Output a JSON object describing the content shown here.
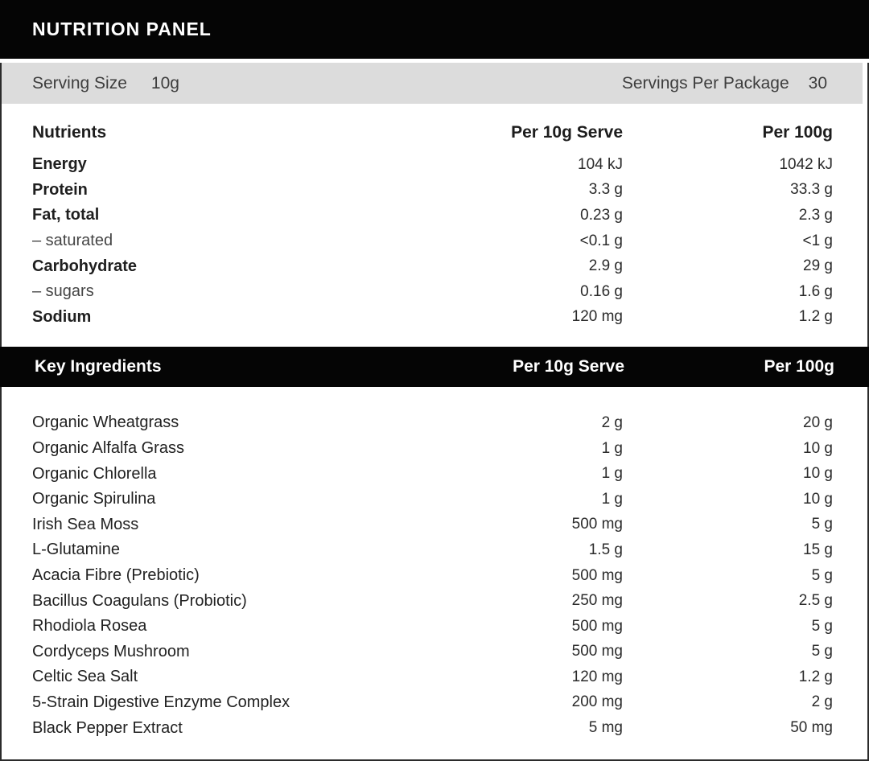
{
  "title": "NUTRITION PANEL",
  "serving": {
    "size_label": "Serving Size",
    "size_value": "10g",
    "per_package_label": "Servings Per Package",
    "per_package_value": "30"
  },
  "nutrients": {
    "header": {
      "col1": "Nutrients",
      "col2": "Per 10g Serve",
      "col3": "Per 100g"
    },
    "rows": [
      {
        "label": "Energy",
        "per_serve": "104 kJ",
        "per_100g": "1042 kJ",
        "style": "bold"
      },
      {
        "label": "Protein",
        "per_serve": "3.3 g",
        "per_100g": "33.3 g",
        "style": "bold"
      },
      {
        "label": "Fat, total",
        "per_serve": "0.23 g",
        "per_100g": "2.3 g",
        "style": "bold"
      },
      {
        "label": "– saturated",
        "per_serve": "<0.1 g",
        "per_100g": "<1 g",
        "style": "sub"
      },
      {
        "label": "Carbohydrate",
        "per_serve": "2.9 g",
        "per_100g": "29 g",
        "style": "bold"
      },
      {
        "label": "– sugars",
        "per_serve": "0.16 g",
        "per_100g": "1.6 g",
        "style": "sub"
      },
      {
        "label": "Sodium",
        "per_serve": "120 mg",
        "per_100g": "1.2 g",
        "style": "bold"
      }
    ]
  },
  "ingredients": {
    "header": {
      "col1": "Key Ingredients",
      "col2": "Per 10g Serve",
      "col3": "Per 100g"
    },
    "rows": [
      {
        "label": "Organic Wheatgrass",
        "per_serve": "2 g",
        "per_100g": "20 g"
      },
      {
        "label": "Organic Alfalfa Grass",
        "per_serve": "1 g",
        "per_100g": "10 g"
      },
      {
        "label": "Organic Chlorella",
        "per_serve": "1 g",
        "per_100g": "10 g"
      },
      {
        "label": "Organic Spirulina",
        "per_serve": "1 g",
        "per_100g": "10 g"
      },
      {
        "label": "Irish Sea Moss",
        "per_serve": "500 mg",
        "per_100g": "5 g"
      },
      {
        "label": "L-Glutamine",
        "per_serve": "1.5 g",
        "per_100g": "15 g"
      },
      {
        "label": "Acacia Fibre (Prebiotic)",
        "per_serve": "500 mg",
        "per_100g": "5 g"
      },
      {
        "label": "Bacillus Coagulans (Probiotic)",
        "per_serve": "250 mg",
        "per_100g": "2.5 g"
      },
      {
        "label": "Rhodiola Rosea",
        "per_serve": "500 mg",
        "per_100g": "5 g"
      },
      {
        "label": "Cordyceps Mushroom",
        "per_serve": "500 mg",
        "per_100g": "5 g"
      },
      {
        "label": "Celtic Sea Salt",
        "per_serve": "120 mg",
        "per_100g": "1.2 g"
      },
      {
        "label": "5-Strain Digestive Enzyme Complex",
        "per_serve": "200 mg",
        "per_100g": "2 g"
      },
      {
        "label": "Black Pepper Extract",
        "per_serve": "5 mg",
        "per_100g": "50 mg"
      }
    ]
  }
}
